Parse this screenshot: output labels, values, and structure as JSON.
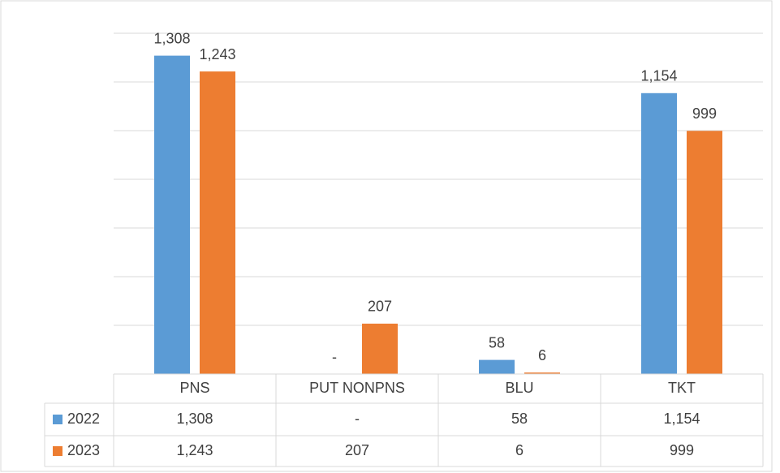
{
  "chart_data": {
    "type": "bar",
    "categories": [
      "PNS",
      "PUT NONPNS",
      "BLU",
      "TKT"
    ],
    "series": [
      {
        "name": "2022",
        "color": "#5b9bd5",
        "values": [
          1308,
          0,
          58,
          1154
        ],
        "value_labels": [
          "1,308",
          "-",
          "58",
          "1,154"
        ]
      },
      {
        "name": "2023",
        "color": "#ed7d31",
        "values": [
          1243,
          207,
          6,
          999
        ],
        "value_labels": [
          "1,243",
          "207",
          "6",
          "999"
        ]
      }
    ],
    "ylim": [
      0,
      1400
    ],
    "yticks": [
      0,
      200,
      400,
      600,
      800,
      1000,
      1200,
      1400
    ],
    "grid": true,
    "data_table": true
  }
}
